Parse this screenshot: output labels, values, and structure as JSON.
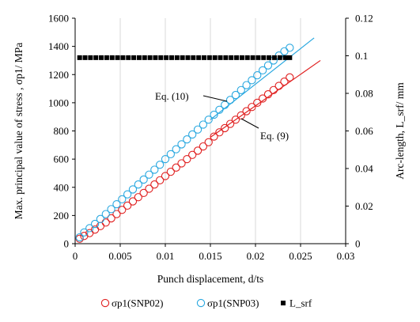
{
  "chart_data": {
    "type": "scatter",
    "xlabel": "Punch displacement, d/ts",
    "ylabel_left": "Max. principal value of stress , σp1/ MPa",
    "ylabel_right": "Arc-length, L_srf/ mm",
    "xlim": [
      0,
      0.03
    ],
    "ylim_left": [
      0,
      1600
    ],
    "ylim_right": [
      0,
      0.12
    ],
    "x_ticks": [
      "0",
      "0.005",
      "0.01",
      "0.015",
      "0.02",
      "0.025",
      "0.03"
    ],
    "y_left_ticks": [
      "0",
      "200",
      "400",
      "600",
      "800",
      "1000",
      "1200",
      "1400",
      "1600"
    ],
    "y_right_ticks": [
      "0",
      "0.02",
      "0.04",
      "0.06",
      "0.08",
      "0.1",
      "0.12"
    ],
    "grid": "vertical",
    "legend_position": "bottom",
    "series": [
      {
        "name": "σp1(SNP02)",
        "axis": "left",
        "marker": "open-circle",
        "color": "#e02020",
        "x": [
          0.0005,
          0.001,
          0.0016,
          0.0022,
          0.0028,
          0.0034,
          0.004,
          0.0046,
          0.0052,
          0.0058,
          0.0064,
          0.007,
          0.0076,
          0.0082,
          0.0088,
          0.0094,
          0.01,
          0.0106,
          0.0112,
          0.0118,
          0.0124,
          0.013,
          0.0136,
          0.0142,
          0.0148,
          0.0154,
          0.016,
          0.0166,
          0.0172,
          0.0178,
          0.0184,
          0.019,
          0.0196,
          0.0202,
          0.0208,
          0.0214,
          0.022,
          0.0226,
          0.0232,
          0.0238
        ],
        "y": [
          35,
          55,
          75,
          100,
          125,
          150,
          180,
          210,
          240,
          270,
          300,
          330,
          360,
          390,
          420,
          450,
          480,
          510,
          540,
          570,
          600,
          630,
          660,
          690,
          720,
          760,
          790,
          820,
          850,
          880,
          910,
          940,
          970,
          1000,
          1030,
          1060,
          1090,
          1120,
          1150,
          1180
        ]
      },
      {
        "name": "σp1(SNP03)",
        "axis": "left",
        "marker": "open-circle",
        "color": "#2aa8e0",
        "x": [
          0.0005,
          0.001,
          0.0016,
          0.0022,
          0.0028,
          0.0034,
          0.004,
          0.0046,
          0.0052,
          0.0058,
          0.0064,
          0.007,
          0.0076,
          0.0082,
          0.0088,
          0.0094,
          0.01,
          0.0106,
          0.0112,
          0.0118,
          0.0124,
          0.013,
          0.0136,
          0.0142,
          0.0148,
          0.0154,
          0.016,
          0.0166,
          0.0172,
          0.0178,
          0.0184,
          0.019,
          0.0196,
          0.0202,
          0.0208,
          0.0214,
          0.022,
          0.0226,
          0.0232,
          0.0238
        ],
        "y": [
          45,
          80,
          110,
          140,
          175,
          210,
          245,
          280,
          315,
          350,
          385,
          420,
          455,
          490,
          525,
          560,
          600,
          635,
          670,
          705,
          740,
          775,
          810,
          845,
          880,
          915,
          950,
          985,
          1020,
          1055,
          1090,
          1125,
          1160,
          1195,
          1230,
          1265,
          1300,
          1335,
          1365,
          1390
        ]
      },
      {
        "name": "L_srf",
        "axis": "right",
        "marker": "filled-square",
        "color": "#000000",
        "x": [
          0.0005,
          0.0011,
          0.0017,
          0.0023,
          0.0029,
          0.0035,
          0.0041,
          0.0047,
          0.0053,
          0.0059,
          0.0065,
          0.0071,
          0.0077,
          0.0083,
          0.0089,
          0.0095,
          0.0101,
          0.0107,
          0.0113,
          0.0119,
          0.0125,
          0.0131,
          0.0137,
          0.0143,
          0.0149,
          0.0155,
          0.0161,
          0.0167,
          0.0173,
          0.0179,
          0.0185,
          0.0191,
          0.0197,
          0.0203,
          0.0209,
          0.0215,
          0.0221,
          0.0227,
          0.0233,
          0.0238
        ],
        "y": [
          0.099,
          0.099,
          0.099,
          0.099,
          0.099,
          0.099,
          0.099,
          0.099,
          0.099,
          0.099,
          0.099,
          0.099,
          0.099,
          0.099,
          0.099,
          0.099,
          0.099,
          0.099,
          0.099,
          0.099,
          0.099,
          0.099,
          0.099,
          0.099,
          0.099,
          0.099,
          0.099,
          0.099,
          0.099,
          0.099,
          0.099,
          0.099,
          0.099,
          0.099,
          0.099,
          0.099,
          0.099,
          0.099,
          0.099,
          0.099
        ]
      }
    ],
    "fit_lines": [
      {
        "label": "Eq. (9)",
        "color": "#e02020",
        "axis": "left",
        "from": [
          0.015,
          755
        ],
        "to": [
          0.0272,
          1300
        ]
      },
      {
        "label": "Eq. (10)",
        "color": "#2aa8e0",
        "axis": "left",
        "from": [
          0.015,
          880
        ],
        "to": [
          0.0265,
          1460
        ]
      }
    ],
    "legend": [
      "σp1(SNP02)",
      "σp1(SNP03)",
      "L_srf"
    ]
  }
}
